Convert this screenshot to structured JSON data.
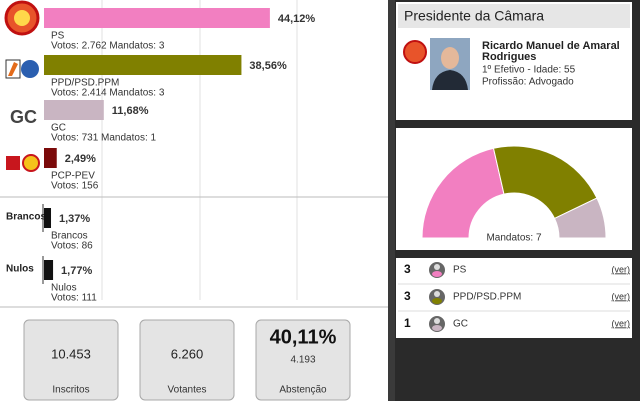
{
  "results": {
    "parties": [
      {
        "name": "PS",
        "percent": 44.12,
        "percent_label": "44,12%",
        "votes_label": "Votos: 2.762 Mandatos: 3",
        "color": "#f27fc1"
      },
      {
        "name": "PPD/PSD.PPM",
        "percent": 38.56,
        "percent_label": "38,56%",
        "votes_label": "Votos: 2.414 Mandatos: 3",
        "color": "#808000"
      },
      {
        "name": "GC",
        "logo_text": "GC",
        "percent": 11.68,
        "percent_label": "11,68%",
        "votes_label": "Votos: 731 Mandatos: 1",
        "color": "#c9b5c2"
      },
      {
        "name": "PCP-PEV",
        "percent": 2.49,
        "percent_label": "2,49%",
        "votes_label": "Votos: 156",
        "color": "#7b0a0a"
      }
    ],
    "other": [
      {
        "heading": "Brancos",
        "name": "Brancos",
        "percent": 1.37,
        "percent_label": "1,37%",
        "votes_label": "Votos: 86",
        "color": "#111111"
      },
      {
        "heading": "Nulos",
        "name": "Nulos",
        "percent": 1.77,
        "percent_label": "1,77%",
        "votes_label": "Votos: 111",
        "color": "#111111"
      }
    ]
  },
  "summary": [
    {
      "value": "10.453",
      "label": "Inscritos"
    },
    {
      "value": "6.260",
      "label": "Votantes"
    },
    {
      "percent": "40,11%",
      "value": "4.193",
      "label": "Abstenção"
    }
  ],
  "mayor": {
    "header": "Presidente da Câmara",
    "name_lines": [
      "Ricardo Manuel de Amaral",
      "Rodrigues"
    ],
    "details": [
      "1º Efetivo - Idade: 55",
      "Profissão: Advogado"
    ]
  },
  "seats": {
    "total_label": "Mandatos: 7",
    "rows": [
      {
        "mandates": 3,
        "name": "PS",
        "link": "(ver)",
        "color": "#f27fc1"
      },
      {
        "mandates": 3,
        "name": "PPD/PSD.PPM",
        "link": "(ver)",
        "color": "#808000"
      },
      {
        "mandates": 1,
        "name": "GC",
        "link": "(ver)",
        "color": "#c9b5c2"
      }
    ]
  }
}
